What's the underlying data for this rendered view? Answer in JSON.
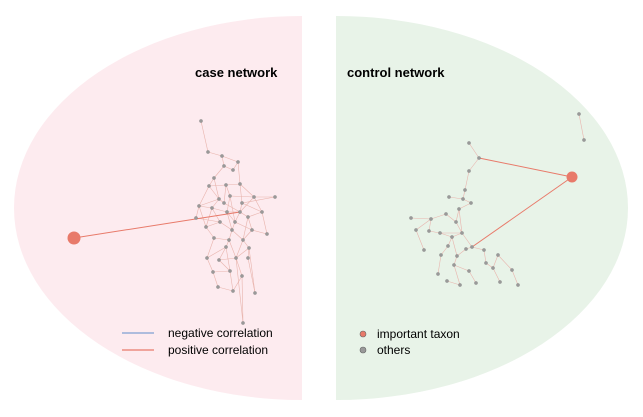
{
  "case_panel": {
    "title": "case network",
    "background": "#fdebef"
  },
  "control_panel": {
    "title": "control network",
    "background": "#e8f3e8"
  },
  "legend": {
    "edges": [
      {
        "label": "negative correlation",
        "color": "#7f9fd2"
      },
      {
        "label": "positive correlation",
        "color": "#e87a6a"
      }
    ],
    "nodes": [
      {
        "label": "important taxon",
        "color": "#e87a6a"
      },
      {
        "label": "others",
        "color": "#999999"
      }
    ]
  },
  "colors": {
    "positive_edge": "#e87a6a",
    "faint_edge": "#e8b4ad",
    "important_node": "#e87a6a",
    "other_node": "#999999"
  }
}
